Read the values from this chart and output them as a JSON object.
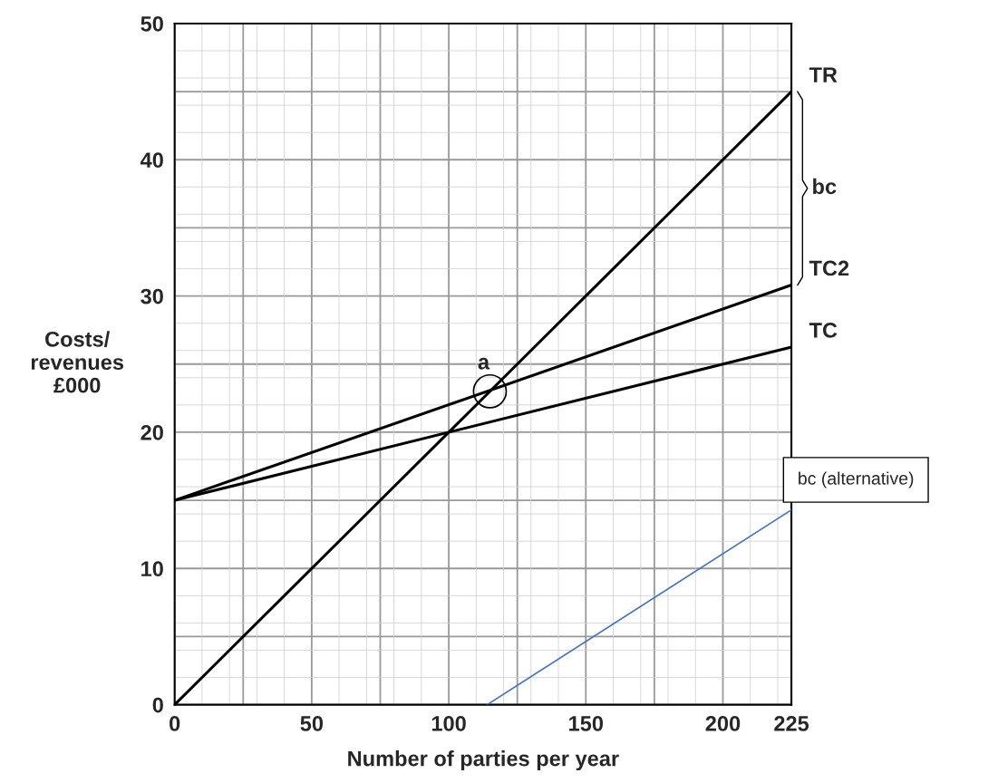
{
  "chart_data": {
    "type": "line",
    "xlabel": "Number of parties per year",
    "ylabel": "Costs/\nrevenues\n£000",
    "xlim": [
      0,
      225
    ],
    "ylim": [
      0,
      50
    ],
    "xticks": [
      0,
      50,
      100,
      150,
      200,
      225
    ],
    "yticks": [
      0,
      10,
      20,
      30,
      40,
      50
    ],
    "grid": true,
    "series": [
      {
        "name": "TR",
        "color": "#000000",
        "x": [
          0,
          225
        ],
        "values": [
          0,
          45
        ]
      },
      {
        "name": "TC2",
        "color": "#000000",
        "x": [
          0,
          225
        ],
        "values": [
          15,
          30.8
        ]
      },
      {
        "name": "TC",
        "color": "#000000",
        "x": [
          0,
          225
        ],
        "values": [
          15,
          26.25
        ]
      },
      {
        "color": "#4472c4",
        "x": [
          114,
          225
        ],
        "values": [
          0,
          14.3
        ]
      }
    ],
    "annotations": [
      {
        "text": "a",
        "x": 115,
        "y": 23
      },
      "bc",
      "bc (alternative)"
    ],
    "legend": false,
    "marker": "none",
    "line_style": "solid"
  }
}
